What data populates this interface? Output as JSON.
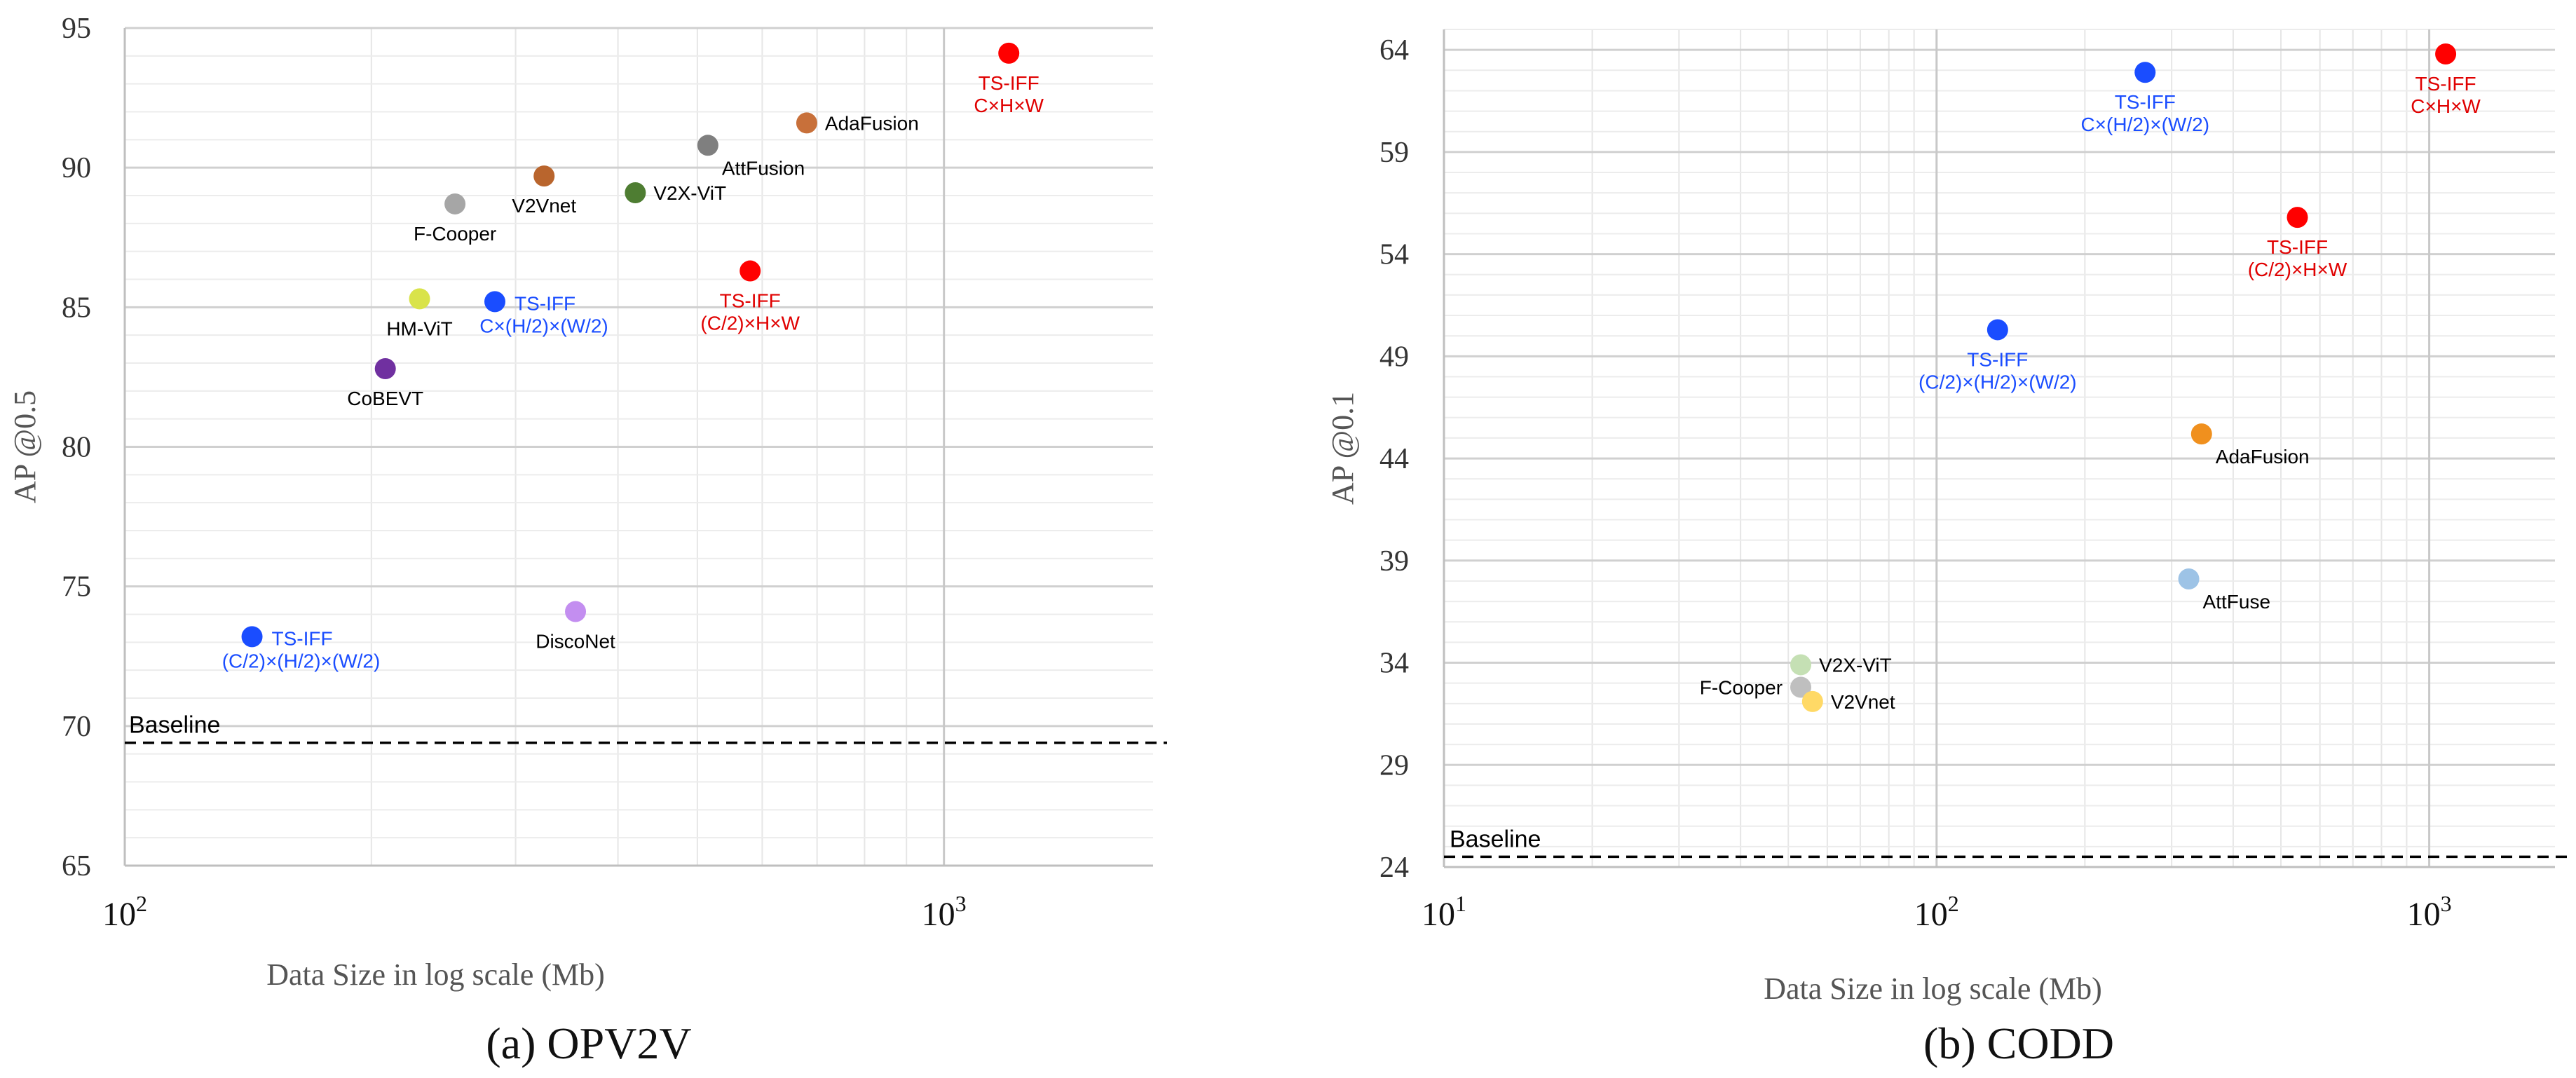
{
  "chart_data": [
    {
      "type": "scatter",
      "id": "opv2v",
      "caption": "(a) OPV2V",
      "xlabel": "Data Size in log scale (Mb)",
      "ylabel": "AP @0.5",
      "x_scale": "log",
      "xlim": [
        100,
        1800
      ],
      "ylim": [
        65,
        95
      ],
      "yticks": [
        65,
        70,
        75,
        80,
        85,
        90,
        95
      ],
      "xticks": [
        {
          "value": 100,
          "base": "10",
          "exp": "2"
        },
        {
          "value": 1000,
          "base": "10",
          "exp": "3"
        }
      ],
      "grid": true,
      "baseline": {
        "label": "Baseline",
        "value": 69.4
      },
      "points": [
        {
          "name": "TS-IFF C×H×W",
          "lines": [
            "TS-IFF",
            "C×H×W"
          ],
          "x": 1200,
          "y": 94.1,
          "color": "#ff0000",
          "label_color": "#e00000",
          "label_pos": "below"
        },
        {
          "name": "AdaFusion",
          "lines": [
            "AdaFusion"
          ],
          "x": 680,
          "y": 91.6,
          "color": "#c8703a",
          "label_color": "#000000",
          "label_pos": "right"
        },
        {
          "name": "AttFusion",
          "lines": [
            "AttFusion"
          ],
          "x": 515,
          "y": 90.8,
          "color": "#7f7f7f",
          "label_color": "#000000",
          "label_pos": "below-right"
        },
        {
          "name": "V2X-ViT",
          "lines": [
            "V2X-ViT"
          ],
          "x": 420,
          "y": 89.1,
          "color": "#4e7d32",
          "label_color": "#000000",
          "label_pos": "right"
        },
        {
          "name": "V2Vnet",
          "lines": [
            "V2Vnet"
          ],
          "x": 325,
          "y": 89.7,
          "color": "#b9652d",
          "label_color": "#000000",
          "label_pos": "below"
        },
        {
          "name": "F-Cooper",
          "lines": [
            "F-Cooper"
          ],
          "x": 253,
          "y": 88.7,
          "color": "#a6a6a6",
          "label_color": "#000000",
          "label_pos": "below"
        },
        {
          "name": "TS-IFF (C/2)×H×W",
          "lines": [
            "TS-IFF",
            "(C/2)×H×W"
          ],
          "x": 580,
          "y": 86.3,
          "color": "#ff0000",
          "label_color": "#e00000",
          "label_pos": "below"
        },
        {
          "name": "HM-ViT",
          "lines": [
            "HM-ViT"
          ],
          "x": 229,
          "y": 85.3,
          "color": "#d9e34a",
          "label_color": "#000000",
          "label_pos": "below"
        },
        {
          "name": "TS-IFF C×(H/2)×(W/2)",
          "lines": [
            "TS-IFF",
            "C×(H/2)×(W/2)"
          ],
          "x": 283,
          "y": 85.2,
          "color": "#1a4dff",
          "label_color": "#1a4dff",
          "label_pos": "right-below"
        },
        {
          "name": "CoBEVT",
          "lines": [
            "CoBEVT"
          ],
          "x": 208,
          "y": 82.8,
          "color": "#7030a0",
          "label_color": "#000000",
          "label_pos": "below"
        },
        {
          "name": "DiscoNet",
          "lines": [
            "DiscoNet"
          ],
          "x": 355,
          "y": 74.1,
          "color": "#c38ef0",
          "label_color": "#000000",
          "label_pos": "below"
        },
        {
          "name": "TS-IFF (C/2)×(H/2)×(W/2)",
          "lines": [
            "TS-IFF",
            "(C/2)×(H/2)×(W/2)"
          ],
          "x": 143,
          "y": 73.2,
          "color": "#1a4dff",
          "label_color": "#1a4dff",
          "label_pos": "right-below"
        }
      ]
    },
    {
      "type": "scatter",
      "id": "codd",
      "caption": "(b) CODD",
      "xlabel": "Data Size in log scale (Mb)",
      "ylabel": "AP @0.1",
      "x_scale": "log",
      "xlim": [
        10,
        1800
      ],
      "ylim": [
        24,
        65
      ],
      "yticks": [
        24,
        29,
        34,
        39,
        44,
        49,
        54,
        59,
        64
      ],
      "xticks": [
        {
          "value": 10,
          "base": "10",
          "exp": "1"
        },
        {
          "value": 100,
          "base": "10",
          "exp": "2"
        },
        {
          "value": 1000,
          "base": "10",
          "exp": "3"
        }
      ],
      "grid": true,
      "baseline": {
        "label": "Baseline",
        "value": 24.5
      },
      "points": [
        {
          "name": "TS-IFF C×H×W",
          "lines": [
            "TS-IFF",
            "C×H×W"
          ],
          "x": 1080,
          "y": 63.8,
          "color": "#ff0000",
          "label_color": "#e00000",
          "label_pos": "below"
        },
        {
          "name": "TS-IFF C×(H/2)×(W/2)",
          "lines": [
            "TS-IFF",
            "C×(H/2)×(W/2)"
          ],
          "x": 265,
          "y": 62.9,
          "color": "#1a4dff",
          "label_color": "#1a4dff",
          "label_pos": "below"
        },
        {
          "name": "TS-IFF (C/2)×H×W",
          "lines": [
            "TS-IFF",
            "(C/2)×H×W"
          ],
          "x": 540,
          "y": 55.8,
          "color": "#ff0000",
          "label_color": "#e00000",
          "label_pos": "below"
        },
        {
          "name": "TS-IFF (C/2)×(H/2)×(W/2)",
          "lines": [
            "TS-IFF",
            "(C/2)×(H/2)×(W/2)"
          ],
          "x": 133,
          "y": 50.3,
          "color": "#1a4dff",
          "label_color": "#1a4dff",
          "label_pos": "below"
        },
        {
          "name": "AdaFusion",
          "lines": [
            "AdaFusion"
          ],
          "x": 345,
          "y": 45.2,
          "color": "#f0901e",
          "label_color": "#000000",
          "label_pos": "below-right"
        },
        {
          "name": "AttFuse",
          "lines": [
            "AttFuse"
          ],
          "x": 325,
          "y": 38.1,
          "color": "#9dc3e6",
          "label_color": "#000000",
          "label_pos": "below-right"
        },
        {
          "name": "V2X-ViT",
          "lines": [
            "V2X-ViT"
          ],
          "x": 53,
          "y": 33.9,
          "color": "#c5e0b4",
          "label_color": "#000000",
          "label_pos": "right"
        },
        {
          "name": "F-Cooper",
          "lines": [
            "F-Cooper"
          ],
          "x": 53,
          "y": 32.8,
          "color": "#bfbfbf",
          "label_color": "#000000",
          "label_pos": "left"
        },
        {
          "name": "V2Vnet",
          "lines": [
            "V2Vnet"
          ],
          "x": 56,
          "y": 32.1,
          "color": "#ffd966",
          "label_color": "#000000",
          "label_pos": "right"
        }
      ]
    }
  ]
}
